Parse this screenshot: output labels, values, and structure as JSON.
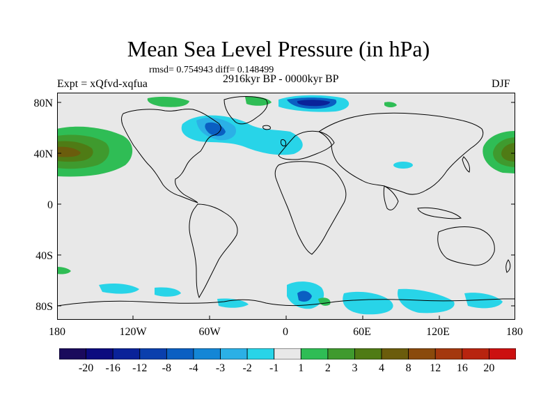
{
  "title": "Mean Sea Level Pressure (in hPa)",
  "stats": "rmsd= 0.754943 diff= 0.148499",
  "experiment": "Expt = xQfvd-xqfua",
  "period": "2916kyr BP - 0000kyr BP",
  "season": "DJF",
  "lat_labels": [
    "80N",
    "40N",
    "0",
    "40S",
    "80S"
  ],
  "lon_labels": [
    "180",
    "120W",
    "60W",
    "0",
    "60E",
    "120E",
    "180"
  ],
  "colorbar": {
    "colors": [
      "#1a0a5c",
      "#0c0b7f",
      "#0a2299",
      "#0a3fad",
      "#0a5fc2",
      "#1486d6",
      "#2bb0e6",
      "#28d4e8",
      "#e8e8e8",
      "#2fbd55",
      "#3f9a2e",
      "#4f7b15",
      "#6b5c0c",
      "#8a4a0c",
      "#a4380e",
      "#b8240f",
      "#cc1010"
    ],
    "labels": [
      "-20",
      "-16",
      "-12",
      "-8",
      "-4",
      "-3",
      "-2",
      "-1",
      "1",
      "2",
      "3",
      "4",
      "8",
      "12",
      "16",
      "20"
    ]
  },
  "palette": {
    "ocean_neutral": "#e8e8e8",
    "cyan": "#28d4e8",
    "light_blue": "#2bb0e6",
    "blue": "#0a5fc2",
    "dark_blue": "#0a2299",
    "green": "#2fbd55",
    "mid_green": "#3f9a2e",
    "olive": "#4f7b15",
    "brown": "#6b5c0c"
  }
}
